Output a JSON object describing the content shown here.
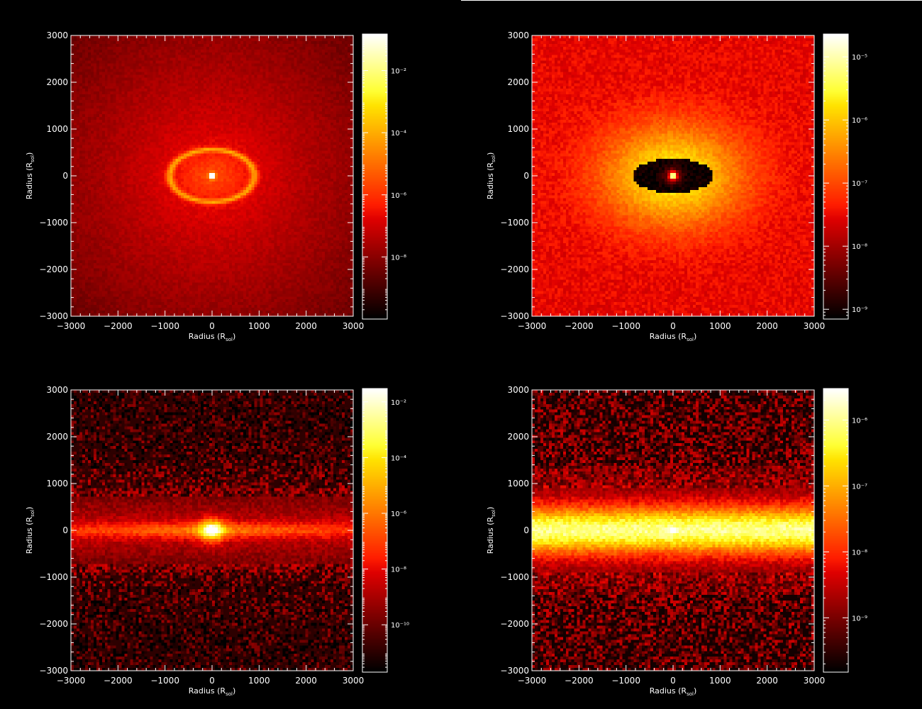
{
  "chart_data": [
    {
      "type": "heatmap",
      "view": "face-on",
      "feature": "central bright source with elliptical ring (radius ~900 x ~550)",
      "xlabel": "Radius (R_sol)",
      "ylabel": "Radius (R_sol)",
      "xlim": [
        -3000,
        3000
      ],
      "ylim": [
        -3000,
        3000
      ],
      "x_ticks": [
        -3000,
        -2000,
        -1000,
        0,
        1000,
        2000,
        3000
      ],
      "y_ticks": [
        -3000,
        -2000,
        -1000,
        0,
        1000,
        2000,
        3000
      ],
      "colorbar": {
        "scale": "log",
        "range": [
          1e-10,
          0.15
        ],
        "tick_exponents": [
          -2,
          -4,
          -6,
          -8
        ],
        "tick_labels": [
          "10⁻²",
          "10⁻⁴",
          "10⁻⁶",
          "10⁻⁸"
        ]
      },
      "colormap": "heat (black-red-orange-white)"
    },
    {
      "type": "heatmap",
      "view": "face-on",
      "feature": "dark elliptical cavity (radius ~850 x ~350) with bright central point, surrounded by bright halo",
      "xlabel": "Radius (R_sol)",
      "ylabel": "Radius (R_sol)",
      "xlim": [
        -3000,
        3000
      ],
      "ylim": [
        -3000,
        3000
      ],
      "x_ticks": [
        -3000,
        -2000,
        -1000,
        0,
        1000,
        2000,
        3000
      ],
      "y_ticks": [
        -3000,
        -2000,
        -1000,
        0,
        1000,
        2000,
        3000
      ],
      "colorbar": {
        "scale": "log",
        "range": [
          7e-10,
          2.3e-05
        ],
        "tick_exponents": [
          -5,
          -6,
          -7,
          -8,
          -9
        ],
        "tick_labels": [
          "10⁻⁵",
          "10⁻⁶",
          "10⁻⁷",
          "10⁻⁸",
          "10⁻⁹"
        ]
      },
      "colormap": "heat (black-red-orange-white)"
    },
    {
      "type": "heatmap",
      "view": "edge-on",
      "feature": "thin horizontal disk with bright central point, noisy halo",
      "xlabel": "Radius (R_sol)",
      "ylabel": "Radius (R_sol)",
      "xlim": [
        -3000,
        3000
      ],
      "ylim": [
        -3000,
        3000
      ],
      "x_ticks": [
        -3000,
        -2000,
        -1000,
        0,
        1000,
        2000,
        3000
      ],
      "y_ticks": [
        -3000,
        -2000,
        -1000,
        0,
        1000,
        2000,
        3000
      ],
      "colorbar": {
        "scale": "log",
        "range": [
          2e-12,
          0.03
        ],
        "tick_exponents": [
          -2,
          -4,
          -6,
          -8,
          -10
        ],
        "tick_labels": [
          "10⁻²",
          "10⁻⁴",
          "10⁻⁶",
          "10⁻⁸",
          "10⁻¹⁰"
        ]
      },
      "colormap": "heat (black-red-orange-white)"
    },
    {
      "type": "heatmap",
      "view": "edge-on",
      "feature": "broad bright horizontal band (half-height ~600) with central point, noisy halo",
      "xlabel": "Radius (R_sol)",
      "ylabel": "Radius (R_sol)",
      "xlim": [
        -3000,
        3000
      ],
      "ylim": [
        -3000,
        3000
      ],
      "x_ticks": [
        -3000,
        -2000,
        -1000,
        0,
        1000,
        2000,
        3000
      ],
      "y_ticks": [
        -3000,
        -2000,
        -1000,
        0,
        1000,
        2000,
        3000
      ],
      "colorbar": {
        "scale": "log",
        "range": [
          1.5e-10,
          3e-06
        ],
        "tick_exponents": [
          -6,
          -7,
          -8,
          -9
        ],
        "tick_labels": [
          "10⁻⁶",
          "10⁻⁷",
          "10⁻⁸",
          "10⁻⁹"
        ]
      },
      "colormap": "heat (black-red-orange-white)"
    }
  ],
  "axis_label_main": "Radius (R",
  "axis_label_sub": "sol",
  "axis_label_close": ")",
  "colors": {
    "background": "#000000",
    "axes": "#ffffff"
  }
}
